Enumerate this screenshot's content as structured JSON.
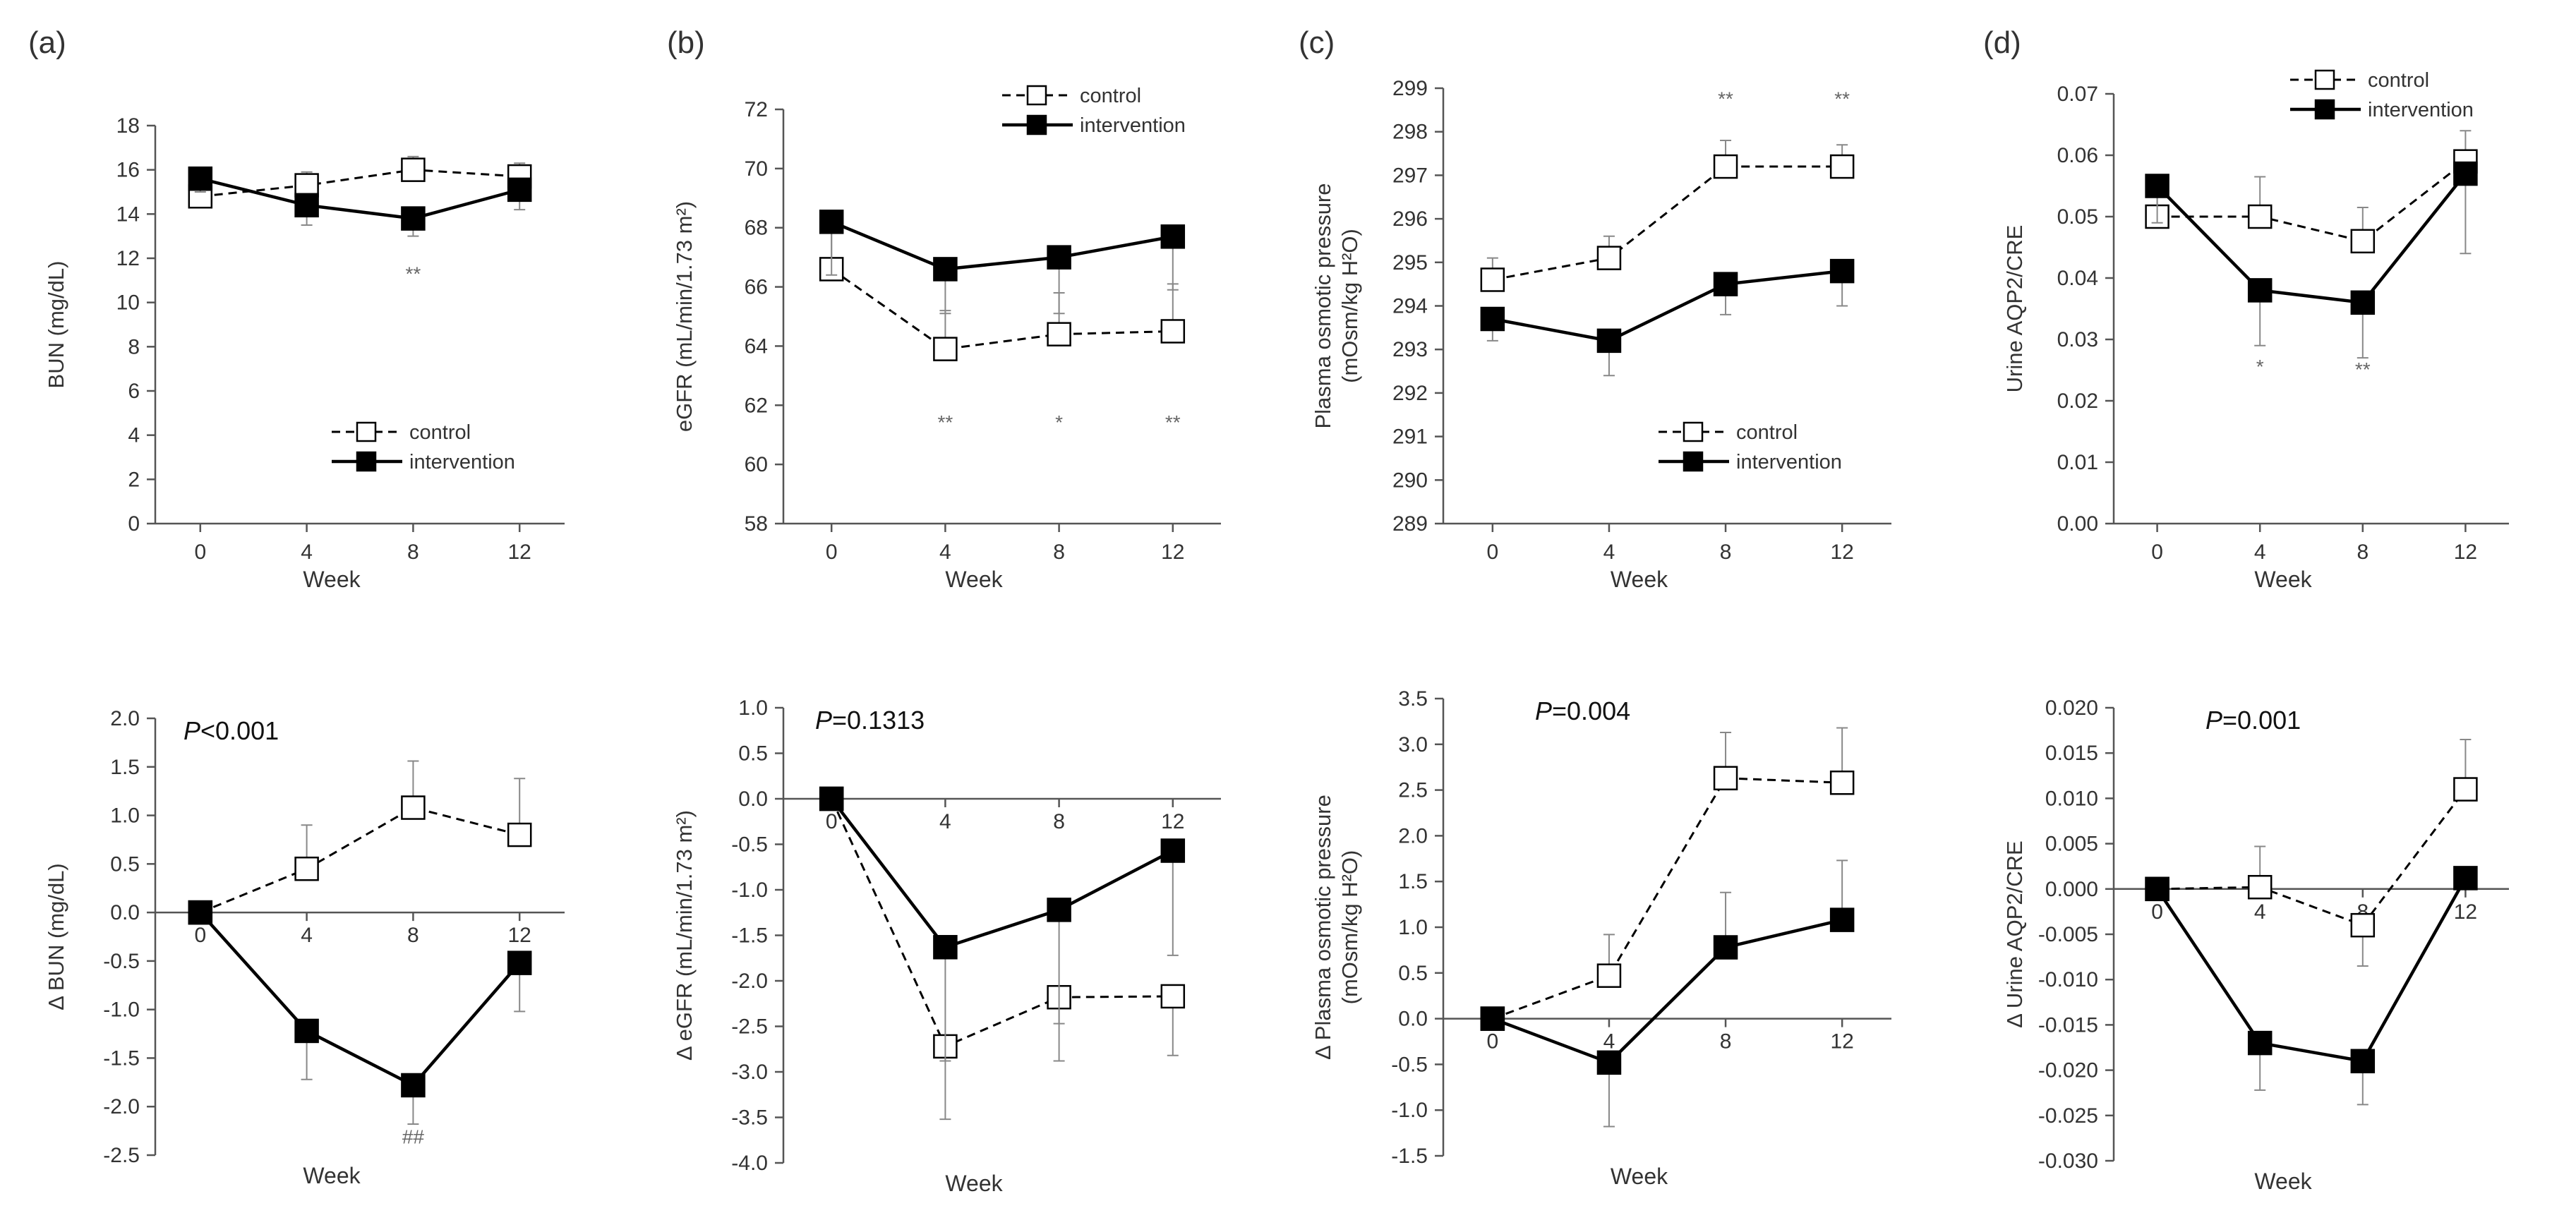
{
  "figure_panels": [
    "(a)",
    "(b)",
    "(c)",
    "(d)"
  ],
  "colors": {
    "line": "#000000",
    "axis": "#555555",
    "text": "#333333",
    "annot": "#666666",
    "errbar": "#888888"
  },
  "chart_data": [
    {
      "id": "a-top",
      "type": "line",
      "panel_label": "(a)",
      "xlabel": "Week",
      "ylabel": "BUN (mg/dL)",
      "x": [
        0,
        4,
        8,
        12
      ],
      "xtick_labels": [
        "0",
        "4",
        "8",
        "12"
      ],
      "ylim": [
        0,
        18
      ],
      "ytick_labels": [
        "0",
        "2",
        "4",
        "6",
        "8",
        "10",
        "12",
        "14",
        "16",
        "18"
      ],
      "legend": {
        "position": "bottom-right",
        "entries": [
          "control",
          "intervention"
        ]
      },
      "series": [
        {
          "name": "control",
          "style": "dashed-open",
          "values": [
            14.8,
            15.3,
            16.0,
            15.7
          ],
          "err": [
            0.3,
            0.6,
            0.6,
            0.6
          ]
        },
        {
          "name": "intervention",
          "style": "solid-filled",
          "values": [
            15.6,
            14.4,
            13.8,
            15.1
          ],
          "err": [
            0.6,
            0.9,
            0.8,
            0.9
          ]
        }
      ],
      "annotations": [
        {
          "x": 8,
          "text": "**"
        }
      ],
      "p_value": null
    },
    {
      "id": "b-top",
      "type": "line",
      "panel_label": "(b)",
      "xlabel": "Week",
      "ylabel": "eGFR (mL/min/1.73 m²)",
      "x": [
        0,
        4,
        8,
        12
      ],
      "xtick_labels": [
        "0",
        "4",
        "8",
        "12"
      ],
      "ylim": [
        58,
        72
      ],
      "ytick_labels": [
        "58",
        "60",
        "62",
        "64",
        "66",
        "68",
        "70",
        "72"
      ],
      "legend": {
        "position": "top-right",
        "entries": [
          "control",
          "intervention"
        ]
      },
      "series": [
        {
          "name": "control",
          "style": "dashed-open",
          "values": [
            66.6,
            63.9,
            64.4,
            64.5
          ],
          "err": [
            1.5,
            1.3,
            1.4,
            1.6
          ]
        },
        {
          "name": "intervention",
          "style": "solid-filled",
          "values": [
            68.2,
            66.6,
            67.0,
            67.7
          ],
          "err": [
            1.8,
            1.5,
            1.9,
            1.8
          ]
        }
      ],
      "annotations": [
        {
          "x": 4,
          "text": "**"
        },
        {
          "x": 8,
          "text": "*"
        },
        {
          "x": 12,
          "text": "**"
        }
      ],
      "p_value": null
    },
    {
      "id": "c-top",
      "type": "line",
      "panel_label": "(c)",
      "xlabel": "Week",
      "ylabel": "Plasma osmotic pressure",
      "ylabel2": "(mOsm/kg H²O)",
      "x": [
        0,
        4,
        8,
        12
      ],
      "xtick_labels": [
        "0",
        "4",
        "8",
        "12"
      ],
      "ylim": [
        289,
        299
      ],
      "ytick_labels": [
        "289",
        "290",
        "291",
        "292",
        "293",
        "294",
        "295",
        "296",
        "297",
        "298",
        "299"
      ],
      "legend": {
        "position": "bottom-right",
        "entries": [
          "control",
          "intervention"
        ]
      },
      "series": [
        {
          "name": "control",
          "style": "dashed-open",
          "values": [
            294.6,
            295.1,
            297.2,
            297.2
          ],
          "err": [
            0.5,
            0.5,
            0.6,
            0.5
          ]
        },
        {
          "name": "intervention",
          "style": "solid-filled",
          "values": [
            293.7,
            293.2,
            294.5,
            294.8
          ],
          "err": [
            0.5,
            0.8,
            0.7,
            0.8
          ]
        }
      ],
      "annotations": [
        {
          "x": 8,
          "text": "**"
        },
        {
          "x": 12,
          "text": "**"
        }
      ],
      "p_value": null
    },
    {
      "id": "d-top",
      "type": "line",
      "panel_label": "(d)",
      "xlabel": "Week",
      "ylabel": "Urine AQP2/CRE",
      "x": [
        0,
        4,
        8,
        12
      ],
      "xtick_labels": [
        "0",
        "4",
        "8",
        "12"
      ],
      "ylim": [
        0,
        0.07
      ],
      "ytick_labels": [
        "0.00",
        "0.01",
        "0.02",
        "0.03",
        "0.04",
        "0.05",
        "0.06",
        "0.07"
      ],
      "legend": {
        "position": "top-right",
        "entries": [
          "control",
          "intervention"
        ]
      },
      "series": [
        {
          "name": "control",
          "style": "dashed-open",
          "values": [
            0.05,
            0.05,
            0.046,
            0.059
          ],
          "err": [
            0.0065,
            0.0065,
            0.0055,
            0.005
          ]
        },
        {
          "name": "intervention",
          "style": "solid-filled",
          "values": [
            0.055,
            0.038,
            0.036,
            0.057
          ],
          "err": [
            0.006,
            0.009,
            0.009,
            0.013
          ]
        }
      ],
      "annotations": [
        {
          "x": 4,
          "text": "*"
        },
        {
          "x": 8,
          "text": "**"
        }
      ],
      "p_value": null
    },
    {
      "id": "a-bottom",
      "type": "line",
      "panel_label": "",
      "xlabel": "Week",
      "ylabel": "Δ BUN (mg/dL)",
      "x": [
        0,
        4,
        8,
        12
      ],
      "xtick_labels": [
        "0",
        "4",
        "8",
        "12"
      ],
      "ylim": [
        -2.5,
        2.0
      ],
      "ytick_labels": [
        "-2.5",
        "-2.0",
        "-1.5",
        "-1.0",
        "-0.5",
        "0.0",
        "0.5",
        "1.0",
        "1.5",
        "2.0"
      ],
      "series": [
        {
          "name": "control",
          "style": "dashed-open",
          "values": [
            0.0,
            0.45,
            1.08,
            0.8
          ],
          "err": [
            0,
            0.45,
            0.48,
            0.58
          ]
        },
        {
          "name": "intervention",
          "style": "solid-filled",
          "values": [
            0.0,
            -1.22,
            -1.78,
            -0.52
          ],
          "err": [
            0,
            0.5,
            0.4,
            0.5
          ]
        }
      ],
      "annotations": [
        {
          "x": 8,
          "text": "##"
        }
      ],
      "p_value": {
        "italic": "P",
        "rest": "<0.001"
      }
    },
    {
      "id": "b-bottom",
      "type": "line",
      "panel_label": "",
      "xlabel": "Week",
      "ylabel": "Δ eGFR (mL/min/1.73 m²)",
      "x": [
        0,
        4,
        8,
        12
      ],
      "xtick_labels": [
        "0",
        "4",
        "8",
        "12"
      ],
      "ylim": [
        -4.0,
        1.0
      ],
      "ytick_labels": [
        "-4.0",
        "-3.5",
        "-3.0",
        "-2.5",
        "-2.0",
        "-1.5",
        "-1.0",
        "-0.5",
        "0.0",
        "0.5",
        "1.0"
      ],
      "series": [
        {
          "name": "control",
          "style": "dashed-open",
          "values": [
            0.0,
            -2.72,
            -2.18,
            -2.17
          ],
          "err": [
            0,
            0.8,
            0.7,
            0.65
          ]
        },
        {
          "name": "intervention",
          "style": "solid-filled",
          "values": [
            0.0,
            -1.63,
            -1.22,
            -0.57
          ],
          "err": [
            0,
            1.25,
            1.25,
            1.15
          ]
        }
      ],
      "annotations": [],
      "p_value": {
        "italic": "P",
        "rest": "=0.1313"
      }
    },
    {
      "id": "c-bottom",
      "type": "line",
      "panel_label": "",
      "xlabel": "Week",
      "ylabel": "Δ Plasma osmotic pressure",
      "ylabel2": "(mOsm/kg H²O)",
      "x": [
        0,
        4,
        8,
        12
      ],
      "xtick_labels": [
        "0",
        "4",
        "8",
        "12"
      ],
      "ylim": [
        -1.5,
        3.5
      ],
      "ytick_labels": [
        "-1.5",
        "-1.0",
        "-0.5",
        "0.0",
        "0.5",
        "1.0",
        "1.5",
        "2.0",
        "2.5",
        "3.0",
        "3.5"
      ],
      "series": [
        {
          "name": "control",
          "style": "dashed-open",
          "values": [
            0.0,
            0.47,
            2.63,
            2.58
          ],
          "err": [
            0,
            0.45,
            0.5,
            0.6
          ]
        },
        {
          "name": "intervention",
          "style": "solid-filled",
          "values": [
            0.0,
            -0.48,
            0.78,
            1.08
          ],
          "err": [
            0,
            0.7,
            0.6,
            0.65
          ]
        }
      ],
      "annotations": [],
      "p_value": {
        "italic": "P",
        "rest": "=0.004"
      }
    },
    {
      "id": "d-bottom",
      "type": "line",
      "panel_label": "",
      "xlabel": "Week",
      "ylabel": "Δ Urine AQP2/CRE",
      "x": [
        0,
        4,
        8,
        12
      ],
      "xtick_labels": [
        "0",
        "4",
        "8",
        "12"
      ],
      "ylim": [
        -0.03,
        0.02
      ],
      "ytick_labels": [
        "-0.030",
        "-0.025",
        "-0.020",
        "-0.015",
        "-0.010",
        "-0.005",
        "0.000",
        "0.005",
        "0.010",
        "0.015",
        "0.020"
      ],
      "series": [
        {
          "name": "control",
          "style": "dashed-open",
          "values": [
            0.0,
            0.0002,
            -0.004,
            0.011
          ],
          "err": [
            0,
            0.0045,
            0.0045,
            0.0055
          ]
        },
        {
          "name": "intervention",
          "style": "solid-filled",
          "values": [
            0.0,
            -0.017,
            -0.019,
            0.0012
          ],
          "err": [
            0,
            0.0052,
            0.0048,
            0.001
          ]
        }
      ],
      "annotations": [],
      "p_value": {
        "italic": "P",
        "rest": "=0.001"
      }
    }
  ]
}
